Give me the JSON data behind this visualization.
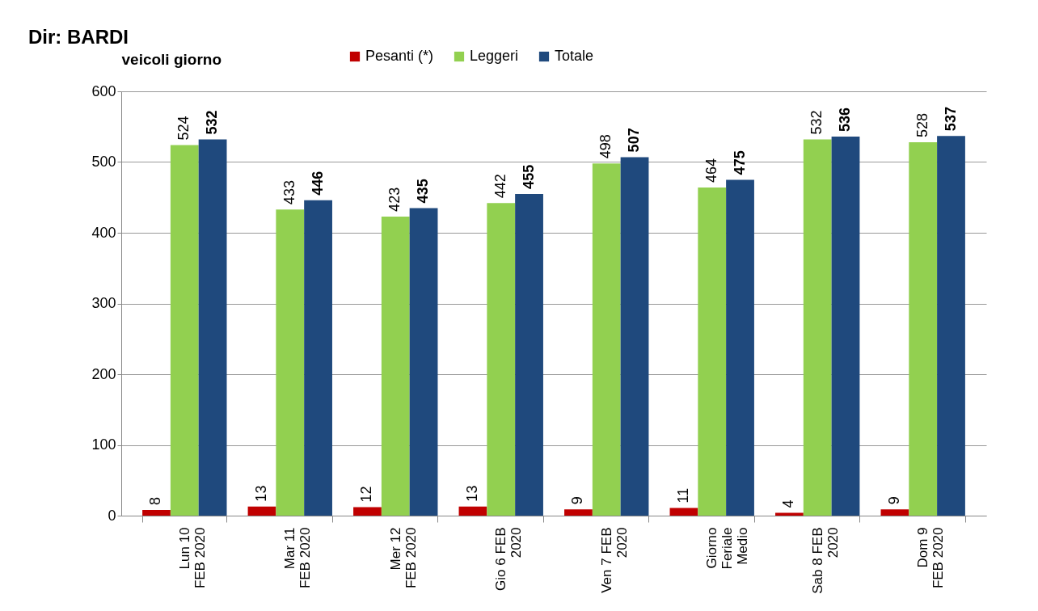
{
  "chart_data": {
    "type": "bar",
    "title": "Dir: BARDI",
    "ylabel": "veicoli giorno",
    "categories": [
      "Lun 10\nFEB 2020",
      "Mar 11\nFEB 2020",
      "Mer 12\nFEB 2020",
      "Gio 6 FEB\n2020",
      "Ven 7 FEB\n2020",
      "Giorno\nFeriale\nMedio",
      "Sab 8 FEB\n2020",
      "Dom 9\nFEB 2020"
    ],
    "series": [
      {
        "name": "Pesanti (*)",
        "color": "#c00000",
        "values": [
          8,
          13,
          12,
          13,
          9,
          11,
          4,
          9
        ]
      },
      {
        "name": "Leggeri",
        "color": "#92d050",
        "values": [
          524,
          433,
          423,
          442,
          498,
          464,
          532,
          528
        ]
      },
      {
        "name": "Totale",
        "color": "#1f497d",
        "values": [
          532,
          446,
          435,
          455,
          507,
          475,
          536,
          537
        ]
      }
    ],
    "ylim": [
      0,
      600
    ],
    "yticks": [
      0,
      100,
      200,
      300,
      400,
      500,
      600
    ],
    "grid": "y",
    "legend": "top",
    "data_labels": true
  }
}
